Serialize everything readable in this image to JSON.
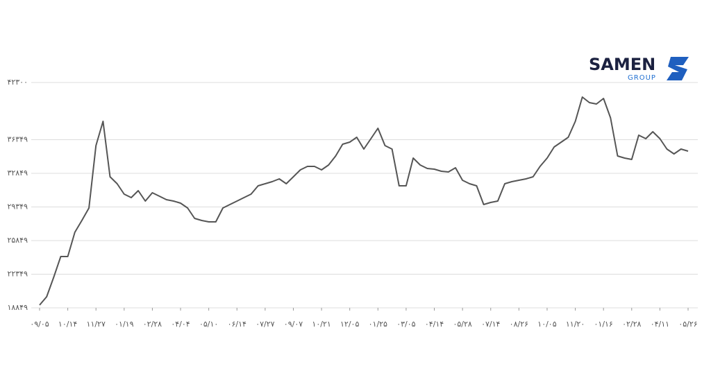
{
  "logo": {
    "name": "SAMEN",
    "sub": "GROUP"
  },
  "chart_data": {
    "type": "line",
    "categories": [
      "۰۹/۰۵",
      null,
      null,
      null,
      "۱۰/۱۴",
      null,
      null,
      null,
      "۱۱/۲۷",
      null,
      null,
      null,
      "۰۱/۱۹",
      null,
      null,
      null,
      "۰۲/۲۸",
      null,
      null,
      null,
      "۰۴/۰۴",
      null,
      null,
      null,
      "۰۵/۱۰",
      null,
      null,
      null,
      "۰۶/۱۴",
      null,
      null,
      null,
      "۰۷/۲۷",
      null,
      null,
      null,
      "۰۹/۰۷",
      null,
      null,
      null,
      "۱۰/۲۱",
      null,
      null,
      null,
      "۱۲/۰۵",
      null,
      null,
      null,
      "۰۱/۲۵",
      null,
      null,
      null,
      "۰۳/۰۵",
      null,
      null,
      null,
      "۰۴/۱۴",
      null,
      null,
      null,
      "۰۵/۲۸",
      null,
      null,
      null,
      "۰۷/۱۴",
      null,
      null,
      null,
      "۰۸/۲۶",
      null,
      null,
      null,
      "۱۰/۰۵",
      null,
      null,
      null,
      "۱۱/۲۰",
      null,
      null,
      null,
      "۰۱/۱۶",
      null,
      null,
      null,
      "۰۲/۲۸",
      null,
      null,
      null,
      "۰۴/۱۱",
      null,
      null,
      null,
      "۰۵/۲۶"
    ],
    "series": [
      {
        "color": "#555555",
        "values": [
          19138,
          20004,
          22024,
          24189,
          24189,
          26715,
          27942,
          29240,
          35734,
          38260,
          32487,
          31765,
          30683,
          30322,
          31044,
          29961,
          30827,
          30467,
          30106,
          29961,
          29745,
          29240,
          28157,
          27942,
          27797,
          27797,
          29240,
          29600,
          29961,
          30322,
          30683,
          31549,
          31765,
          31982,
          32271,
          31765,
          32487,
          33209,
          33569,
          33569,
          33209,
          33714,
          34652,
          35879,
          36095,
          36600,
          35374,
          36456,
          37538,
          35734,
          35374,
          31549,
          31549,
          34436,
          33714,
          33353,
          33281,
          33065,
          32993,
          33425,
          32126,
          31765,
          31549,
          29600,
          29817,
          29961,
          31765,
          31982,
          32126,
          32271,
          32487,
          33569,
          34436,
          35590,
          36095,
          36600,
          38260,
          40786,
          40209,
          40064,
          40642,
          38621,
          34652,
          34436,
          34292,
          36817,
          36456,
          37178,
          36456,
          35374,
          34869,
          35374,
          35157
        ]
      }
    ],
    "ylim": [
      18849,
      42300
    ],
    "yticks": [
      {
        "value": 18849,
        "label": "۱۸۸۴۹"
      },
      {
        "value": 22349,
        "label": "۲۲۳۴۹"
      },
      {
        "value": 25849,
        "label": "۲۵۸۴۹"
      },
      {
        "value": 29349,
        "label": "۲۹۳۴۹"
      },
      {
        "value": 32849,
        "label": "۳۲۸۴۹"
      },
      {
        "value": 36349,
        "label": "۳۶۳۴۹"
      },
      {
        "value": 42300,
        "label": "۴۲۳۰۰"
      }
    ],
    "grid": true
  }
}
